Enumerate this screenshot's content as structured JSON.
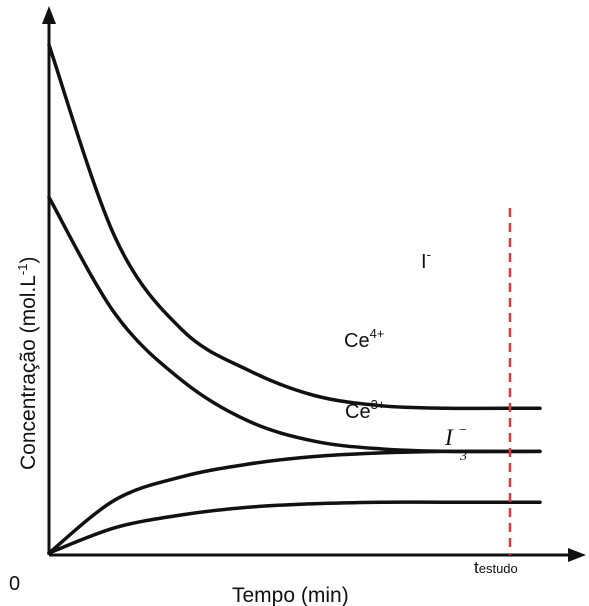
{
  "chart_data": {
    "type": "line",
    "ylabel": "Concentração (mol.L",
    "ylabel_sup": "-1",
    "ylabel_end": ")",
    "xlabel": "Tempo (min)",
    "origin_label": "0",
    "marker": {
      "label_main": "t",
      "label_sub": "estudo",
      "color": "#e53935",
      "style": "dashed"
    },
    "axis_color": "#111111",
    "series": [
      {
        "name": "I",
        "label_base": "I",
        "label_sup": "-",
        "values": [
          [
            0,
            10.0
          ],
          [
            5,
            6.2
          ],
          [
            10,
            4.4
          ],
          [
            15,
            3.6
          ],
          [
            20,
            3.1
          ],
          [
            25,
            2.9
          ],
          [
            30,
            2.85
          ],
          [
            37,
            2.85
          ]
        ]
      },
      {
        "name": "Ce4+",
        "label_base": "Ce",
        "label_sup": "4+",
        "values": [
          [
            0,
            7.0
          ],
          [
            5,
            4.7
          ],
          [
            10,
            3.4
          ],
          [
            15,
            2.6
          ],
          [
            20,
            2.2
          ],
          [
            25,
            2.05
          ],
          [
            30,
            2.0
          ],
          [
            37,
            2.0
          ]
        ]
      },
      {
        "name": "Ce3+",
        "label_base": "Ce",
        "label_sup": "3+",
        "values": [
          [
            0,
            0
          ],
          [
            5,
            1.05
          ],
          [
            10,
            1.5
          ],
          [
            15,
            1.75
          ],
          [
            20,
            1.9
          ],
          [
            25,
            1.97
          ],
          [
            30,
            2.0
          ],
          [
            37,
            2.0
          ]
        ]
      },
      {
        "name": "I3-",
        "label_base": "I",
        "label_sub": "3",
        "label_sup": "−",
        "italic": true,
        "values": [
          [
            0,
            0
          ],
          [
            5,
            0.5
          ],
          [
            10,
            0.75
          ],
          [
            15,
            0.9
          ],
          [
            20,
            0.97
          ],
          [
            25,
            1.0
          ],
          [
            30,
            1.0
          ],
          [
            37,
            1.0
          ]
        ]
      }
    ]
  }
}
